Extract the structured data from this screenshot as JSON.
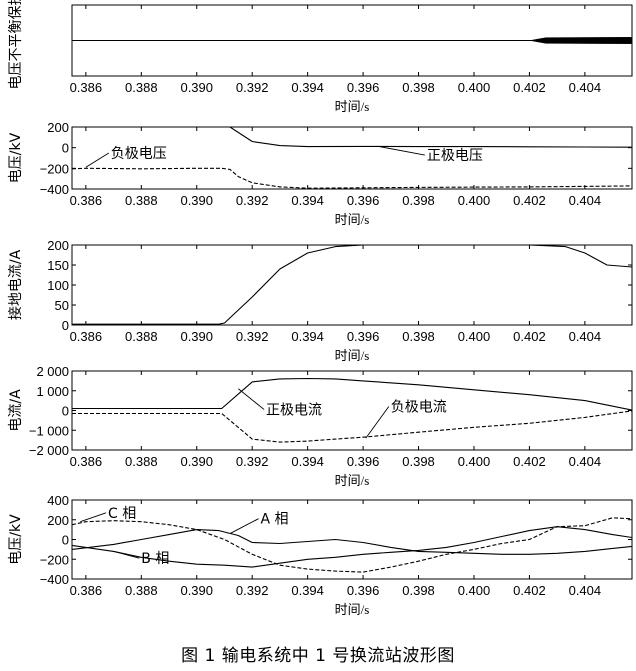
{
  "figure_caption": "图 1   输电系统中 1 号换流站波形图",
  "chart_data": [
    {
      "id": "protect",
      "type": "line",
      "ylabel": "电压不平衡保护",
      "xlabel": "时间/s",
      "xlim": [
        0.3855,
        0.4057
      ],
      "ylim": [
        0,
        1
      ],
      "xticks": [
        0.386,
        0.388,
        0.39,
        0.392,
        0.394,
        0.396,
        0.398,
        0.4,
        0.402,
        0.404
      ],
      "xtick_labels": [
        "0.386",
        "0.388",
        "0.390",
        "0.392",
        "0.394",
        "0.396",
        "0.398",
        "0.400",
        "0.402",
        "0.404"
      ],
      "yticks": [],
      "ytick_labels": [],
      "series": [
        {
          "style": "solid",
          "x": [
            0.3855,
            0.4057
          ],
          "y": [
            0.5,
            0.5
          ]
        }
      ],
      "bands": [
        {
          "x": [
            0.4021,
            0.4023,
            0.4026,
            0.4057
          ],
          "half_width": [
            0.005,
            0.02,
            0.04,
            0.045
          ],
          "center": 0.5
        }
      ],
      "annotations": []
    },
    {
      "id": "voltage",
      "type": "line",
      "ylabel": "电压/kV",
      "xlabel": "时间/s",
      "xlim": [
        0.3855,
        0.4057
      ],
      "ylim": [
        -400,
        200
      ],
      "xticks": [
        0.386,
        0.388,
        0.39,
        0.392,
        0.394,
        0.396,
        0.398,
        0.4,
        0.402,
        0.404
      ],
      "xtick_labels": [
        "0.386",
        "0.388",
        "0.390",
        "0.392",
        "0.394",
        "0.396",
        "0.398",
        "0.400",
        "0.402",
        "0.404"
      ],
      "yticks": [
        200,
        0,
        -200,
        -400
      ],
      "ytick_labels": [
        "200",
        "0",
        "−200",
        "−400"
      ],
      "series": [
        {
          "name": "正极电压",
          "style": "solid",
          "x": [
            0.3855,
            0.3909,
            0.3912,
            0.392,
            0.393,
            0.394,
            0.396,
            0.398,
            0.4,
            0.402,
            0.404,
            0.4057
          ],
          "y": [
            210,
            210,
            200,
            60,
            20,
            10,
            12,
            10,
            10,
            8,
            6,
            5
          ]
        },
        {
          "name": "负极电压",
          "style": "dashed",
          "x": [
            0.3855,
            0.386,
            0.388,
            0.39,
            0.3909,
            0.3912,
            0.3915,
            0.392,
            0.393,
            0.394,
            0.396,
            0.398,
            0.4,
            0.402,
            0.404,
            0.4057
          ],
          "y": [
            -205,
            -200,
            -205,
            -200,
            -200,
            -210,
            -280,
            -340,
            -380,
            -392,
            -388,
            -385,
            -382,
            -380,
            -375,
            -370
          ]
        }
      ],
      "annotations": [
        {
          "text": "负极电压",
          "x": 0.3869,
          "y": -100,
          "arrow_to": [
            0.386,
            -190
          ]
        },
        {
          "text": "正极电压",
          "x": 0.3983,
          "y": -120,
          "arrow_to": [
            0.3966,
            10
          ]
        }
      ]
    },
    {
      "id": "ground_current",
      "type": "line",
      "ylabel": "接地电流/A",
      "xlabel": "时间/s",
      "xlim": [
        0.3855,
        0.4057
      ],
      "ylim": [
        0,
        200
      ],
      "xticks": [
        0.386,
        0.388,
        0.39,
        0.392,
        0.394,
        0.396,
        0.398,
        0.4,
        0.402,
        0.404
      ],
      "xtick_labels": [
        "0.386",
        "0.388",
        "0.390",
        "0.392",
        "0.394",
        "0.396",
        "0.398",
        "0.400",
        "0.402",
        "0.404"
      ],
      "yticks": [
        200,
        150,
        100,
        50,
        0
      ],
      "ytick_labels": [
        "200",
        "150",
        "100",
        "50",
        "0"
      ],
      "series": [
        {
          "style": "solid",
          "x": [
            0.3855,
            0.3908,
            0.391,
            0.392,
            0.393,
            0.394,
            0.395,
            0.396,
            0.398,
            0.4,
            0.402,
            0.4033,
            0.404,
            0.4048,
            0.4057
          ],
          "y": [
            2,
            2,
            5,
            70,
            140,
            180,
            196,
            200,
            200,
            200,
            200,
            196,
            180,
            150,
            145
          ]
        }
      ],
      "annotations": []
    },
    {
      "id": "pole_current",
      "type": "line",
      "ylabel": "电流/A",
      "xlabel": "时间/s",
      "xlim": [
        0.3855,
        0.4057
      ],
      "ylim": [
        -2000,
        2000
      ],
      "xticks": [
        0.386,
        0.388,
        0.39,
        0.392,
        0.394,
        0.396,
        0.398,
        0.4,
        0.402,
        0.404
      ],
      "xtick_labels": [
        "0.386",
        "0.388",
        "0.390",
        "0.392",
        "0.394",
        "0.396",
        "0.398",
        "0.400",
        "0.402",
        "0.404"
      ],
      "yticks": [
        2000,
        1000,
        0,
        -1000,
        -2000
      ],
      "ytick_labels": [
        "2 000",
        "1 000",
        "0",
        "−1 000",
        "−2 000"
      ],
      "series": [
        {
          "name": "正极电流",
          "style": "solid",
          "x": [
            0.3855,
            0.3909,
            0.392,
            0.393,
            0.394,
            0.395,
            0.396,
            0.398,
            0.4,
            0.402,
            0.404,
            0.4057
          ],
          "y": [
            100,
            100,
            1450,
            1600,
            1620,
            1600,
            1500,
            1300,
            1050,
            800,
            500,
            20
          ]
        },
        {
          "name": "负极电流",
          "style": "dashed",
          "x": [
            0.3855,
            0.3909,
            0.392,
            0.393,
            0.394,
            0.395,
            0.396,
            0.398,
            0.4,
            0.402,
            0.404,
            0.4057
          ],
          "y": [
            -150,
            -150,
            -1450,
            -1600,
            -1550,
            -1450,
            -1350,
            -1100,
            -850,
            -650,
            -350,
            -20
          ]
        }
      ],
      "annotations": [
        {
          "text": "正极电流",
          "x": 0.3925,
          "y": -200,
          "arrow_to": [
            0.3915,
            1100
          ]
        },
        {
          "text": "负极电流",
          "x": 0.397,
          "y": -50,
          "arrow_to": [
            0.3961,
            -1400
          ]
        }
      ]
    },
    {
      "id": "phase_voltage",
      "type": "line",
      "ylabel": "电压/kV",
      "xlabel": "时间/s",
      "xlim": [
        0.3855,
        0.4057
      ],
      "ylim": [
        -400,
        400
      ],
      "xticks": [
        0.386,
        0.388,
        0.39,
        0.392,
        0.394,
        0.396,
        0.398,
        0.4,
        0.402,
        0.404
      ],
      "xtick_labels": [
        "0.386",
        "0.388",
        "0.390",
        "0.392",
        "0.394",
        "0.396",
        "0.398",
        "0.400",
        "0.402",
        "0.404"
      ],
      "yticks": [
        400,
        200,
        0,
        -200,
        -400
      ],
      "ytick_labels": [
        "400",
        "200",
        "0",
        "−200",
        "−400"
      ],
      "series": [
        {
          "name": "A 相",
          "style": "solid",
          "x": [
            0.3855,
            0.387,
            0.388,
            0.389,
            0.39,
            0.3908,
            0.3915,
            0.392,
            0.393,
            0.394,
            0.395,
            0.396,
            0.397,
            0.398,
            0.399,
            0.4,
            0.401,
            0.402,
            0.403,
            0.404,
            0.405,
            0.4057
          ],
          "y": [
            -100,
            -50,
            0,
            50,
            100,
            90,
            40,
            -30,
            -40,
            -20,
            0,
            -30,
            -80,
            -120,
            -130,
            -140,
            -150,
            -150,
            -140,
            -120,
            -90,
            -70
          ]
        },
        {
          "name": "B 相",
          "style": "solid",
          "x": [
            0.3855,
            0.387,
            0.388,
            0.389,
            0.39,
            0.391,
            0.392,
            0.393,
            0.394,
            0.395,
            0.396,
            0.397,
            0.398,
            0.399,
            0.4,
            0.401,
            0.402,
            0.403,
            0.404,
            0.405,
            0.4057
          ],
          "y": [
            -60,
            -120,
            -180,
            -220,
            -250,
            -260,
            -280,
            -240,
            -200,
            -180,
            -150,
            -130,
            -110,
            -80,
            -30,
            30,
            90,
            130,
            100,
            50,
            20
          ]
        },
        {
          "name": "C 相",
          "style": "dashed",
          "x": [
            0.3855,
            0.386,
            0.387,
            0.388,
            0.389,
            0.39,
            0.391,
            0.392,
            0.393,
            0.394,
            0.395,
            0.396,
            0.397,
            0.398,
            0.399,
            0.4,
            0.401,
            0.402,
            0.403,
            0.404,
            0.405,
            0.4057
          ],
          "y": [
            150,
            180,
            190,
            180,
            150,
            100,
            0,
            -150,
            -260,
            -300,
            -320,
            -330,
            -280,
            -220,
            -150,
            -100,
            -40,
            0,
            130,
            140,
            220,
            210
          ]
        }
      ],
      "annotations": [
        {
          "text": "C 相",
          "x": 0.3868,
          "y": 220,
          "arrow_to": [
            0.3858,
            180
          ]
        },
        {
          "text": "A 相",
          "x": 0.3923,
          "y": 160,
          "arrow_to": [
            0.3912,
            60
          ]
        },
        {
          "text": "B 相",
          "x": 0.388,
          "y": -240,
          "arrow_to": [
            0.387,
            -120
          ]
        }
      ]
    }
  ]
}
